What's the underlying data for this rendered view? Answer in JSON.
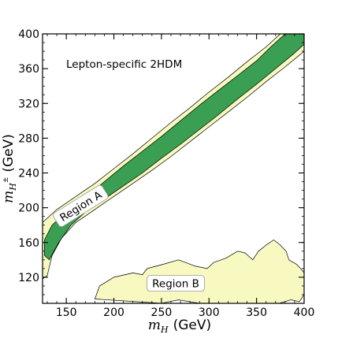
{
  "chart_data": {
    "type": "contour",
    "annotation": "Lepton-specific 2HDM",
    "xlabel": {
      "symbol": "m",
      "subscript": "H",
      "unit": "(GeV)"
    },
    "ylabel": {
      "symbol": "m",
      "subscript": "H",
      "superscript": "±",
      "unit": "(GeV)"
    },
    "xlim": [
      125,
      400
    ],
    "ylim": [
      90,
      400
    ],
    "xticks": [
      150,
      200,
      250,
      300,
      350,
      400
    ],
    "xtick_labels": [
      "150",
      "200",
      "250",
      "300",
      "350",
      "400"
    ],
    "yticks": [
      120,
      160,
      200,
      240,
      280,
      320,
      360,
      400
    ],
    "ytick_labels": [
      "120",
      "160",
      "200",
      "240",
      "280",
      "320",
      "360",
      "400"
    ],
    "colors": {
      "inner": "#3a9f53",
      "outer": "#f7f9c0",
      "line": "#000000"
    },
    "regions": [
      {
        "label": "Region A",
        "label_at": [
          165,
          202
        ],
        "label_rotation": -32,
        "outer_contour": [
          [
            125,
            183
          ],
          [
            140,
            198
          ],
          [
            160,
            213
          ],
          [
            180,
            228
          ],
          [
            200,
            245
          ],
          [
            220,
            262
          ],
          [
            240,
            280
          ],
          [
            260,
            298
          ],
          [
            280,
            315
          ],
          [
            300,
            333
          ],
          [
            320,
            350
          ],
          [
            340,
            368
          ],
          [
            360,
            385
          ],
          [
            375,
            400
          ],
          [
            395,
            400
          ],
          [
            400,
            392
          ],
          [
            400,
            380
          ],
          [
            380,
            362
          ],
          [
            360,
            345
          ],
          [
            340,
            327
          ],
          [
            320,
            310
          ],
          [
            300,
            293
          ],
          [
            280,
            276
          ],
          [
            260,
            259
          ],
          [
            240,
            243
          ],
          [
            220,
            228
          ],
          [
            200,
            213
          ],
          [
            180,
            198
          ],
          [
            160,
            183
          ],
          [
            145,
            165
          ],
          [
            135,
            145
          ],
          [
            130,
            122
          ],
          [
            125,
            118
          ]
        ],
        "inner_contour": [
          [
            127,
            163
          ],
          [
            135,
            180
          ],
          [
            150,
            195
          ],
          [
            170,
            212
          ],
          [
            190,
            230
          ],
          [
            210,
            248
          ],
          [
            230,
            265
          ],
          [
            250,
            282
          ],
          [
            270,
            300
          ],
          [
            290,
            318
          ],
          [
            310,
            335
          ],
          [
            330,
            352
          ],
          [
            350,
            369
          ],
          [
            365,
            385
          ],
          [
            380,
            400
          ],
          [
            400,
            400
          ],
          [
            400,
            388
          ],
          [
            390,
            378
          ],
          [
            370,
            360
          ],
          [
            350,
            342
          ],
          [
            330,
            325
          ],
          [
            310,
            307
          ],
          [
            290,
            290
          ],
          [
            270,
            273
          ],
          [
            250,
            257
          ],
          [
            230,
            240
          ],
          [
            210,
            225
          ],
          [
            190,
            210
          ],
          [
            170,
            195
          ],
          [
            155,
            180
          ],
          [
            142,
            160
          ],
          [
            132,
            140
          ],
          [
            127,
            145
          ]
        ]
      },
      {
        "label": "Region B",
        "label_at": [
          265,
          113
        ],
        "label_rotation": 0,
        "outer_contour": [
          [
            180,
            95
          ],
          [
            185,
            110
          ],
          [
            200,
            120
          ],
          [
            220,
            125
          ],
          [
            230,
            123
          ],
          [
            235,
            130
          ],
          [
            252,
            135
          ],
          [
            268,
            140
          ],
          [
            285,
            133
          ],
          [
            298,
            130
          ],
          [
            305,
            137
          ],
          [
            318,
            142
          ],
          [
            330,
            150
          ],
          [
            338,
            148
          ],
          [
            346,
            140
          ],
          [
            352,
            150
          ],
          [
            360,
            157
          ],
          [
            368,
            163
          ],
          [
            374,
            158
          ],
          [
            381,
            150
          ],
          [
            384,
            140
          ],
          [
            392,
            135
          ],
          [
            398,
            128
          ],
          [
            400,
            125
          ],
          [
            400,
            100
          ],
          [
            395,
            92
          ],
          [
            386,
            94
          ],
          [
            374,
            90
          ],
          [
            290,
            90
          ],
          [
            268,
            94
          ],
          [
            250,
            90
          ]
        ]
      }
    ]
  }
}
